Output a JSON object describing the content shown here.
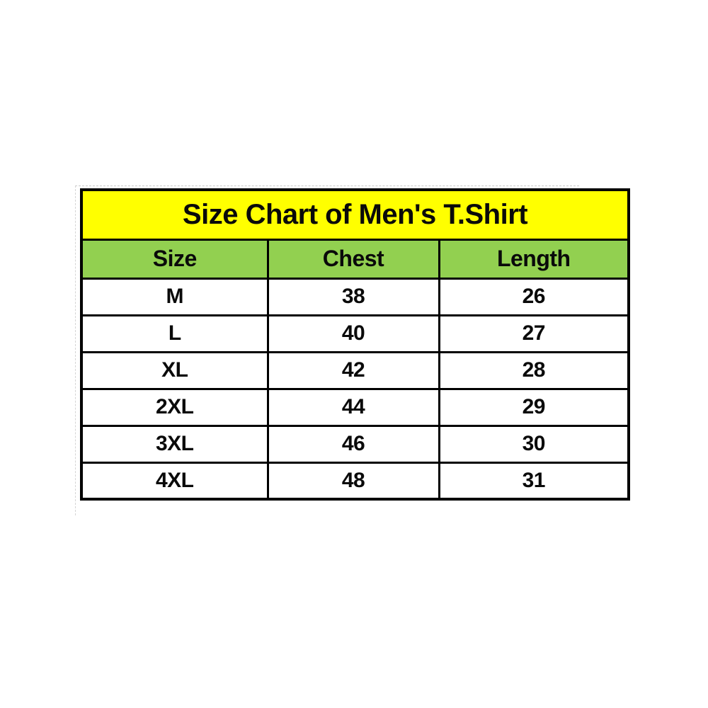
{
  "page": {
    "background": "#FFFFFF"
  },
  "table": {
    "title": "Size Chart of Men's T.Shirt",
    "headers": [
      "Size",
      "Chest",
      "Length"
    ],
    "rows": [
      {
        "size": "M",
        "chest": "38",
        "length": "26"
      },
      {
        "size": "L",
        "chest": "40",
        "length": "27"
      },
      {
        "size": "XL",
        "chest": "42",
        "length": "28"
      },
      {
        "size": "2XL",
        "chest": "44",
        "length": "29"
      },
      {
        "size": "3XL",
        "chest": "46",
        "length": "30"
      },
      {
        "size": "4XL",
        "chest": "48",
        "length": "31"
      }
    ],
    "colors": {
      "title_bg": "#FFFF00",
      "header_bg": "#92D050",
      "row_bg": "#FFFFFF",
      "border": "#000000",
      "text": "#0A0A0A"
    }
  },
  "chart_data": {
    "type": "table",
    "title": "Size Chart of Men's T.Shirt",
    "columns": [
      "Size",
      "Chest",
      "Length"
    ],
    "rows": [
      [
        "M",
        38,
        26
      ],
      [
        "L",
        40,
        27
      ],
      [
        "XL",
        42,
        28
      ],
      [
        "2XL",
        44,
        29
      ],
      [
        "3XL",
        46,
        30
      ],
      [
        "4XL",
        48,
        31
      ]
    ],
    "layout_hints": {
      "title_row_background": "#FFFF00",
      "header_row_background": "#92D050",
      "grid": true,
      "all_text_bold": true,
      "alignment": "center"
    }
  }
}
